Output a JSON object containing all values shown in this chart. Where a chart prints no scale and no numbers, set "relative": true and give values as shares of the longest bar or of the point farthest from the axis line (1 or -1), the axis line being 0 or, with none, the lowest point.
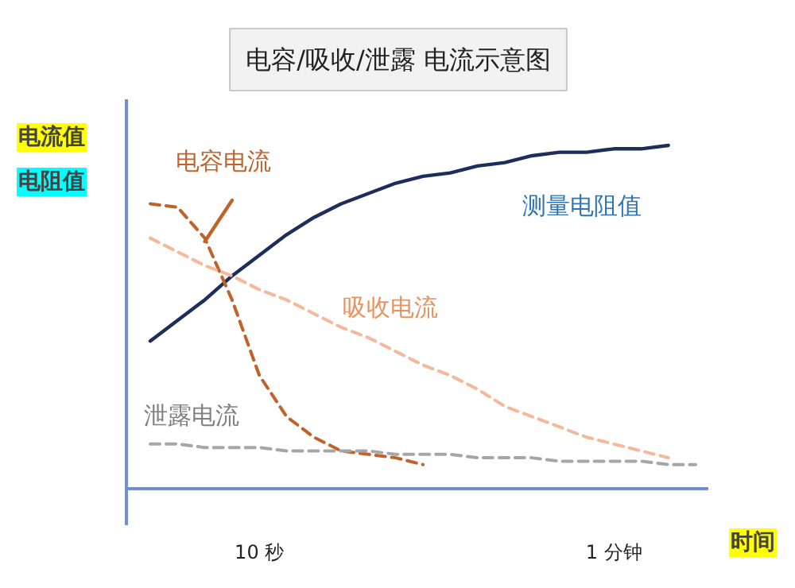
{
  "chart_data": {
    "type": "line",
    "title": "电容/吸收/泄露 电流示意图",
    "xlabel": "时间",
    "ylabel": "电流值",
    "y2label": "电阻值",
    "relative": true,
    "categories": [
      null,
      null,
      null,
      null,
      "10 秒",
      null,
      null,
      null,
      null,
      null,
      null,
      null,
      null,
      null,
      null,
      null,
      null,
      "1 分钟",
      null,
      null,
      null
    ],
    "series": [
      {
        "name": "测量电阻值",
        "color": "#1f2d5a",
        "line_style": "solid",
        "values": [
          0.43,
          0.49,
          0.55,
          0.62,
          0.68,
          0.74,
          0.79,
          0.83,
          0.86,
          0.89,
          0.91,
          0.92,
          0.94,
          0.95,
          0.97,
          0.98,
          0.98,
          0.99,
          0.99,
          1.0,
          null
        ]
      },
      {
        "name": "电容电流",
        "color": "#c0632a",
        "line_style": "dashed",
        "values": [
          0.83,
          0.82,
          0.73,
          0.55,
          0.33,
          0.21,
          0.15,
          0.11,
          0.1,
          0.09,
          0.07,
          null,
          null,
          null,
          null,
          null,
          null,
          null,
          null,
          null,
          null
        ]
      },
      {
        "color": "#c0632a",
        "line_style": "solid",
        "values": [
          null,
          null,
          0.72,
          0.84,
          null,
          null,
          null,
          null,
          null,
          null,
          null,
          null,
          null,
          null,
          null,
          null,
          null,
          null,
          null,
          null,
          null
        ]
      },
      {
        "name": "吸收电流",
        "color": "#f4b89a",
        "line_style": "dashed",
        "values": [
          0.73,
          0.69,
          0.65,
          0.62,
          0.58,
          0.55,
          0.51,
          0.47,
          0.44,
          0.4,
          0.36,
          0.33,
          0.29,
          0.24,
          0.21,
          0.18,
          0.15,
          0.13,
          0.11,
          0.09,
          null
        ]
      },
      {
        "name": "泄露电流",
        "color": "#a6a6a6",
        "line_style": "dashed",
        "values": [
          0.13,
          0.13,
          0.12,
          0.12,
          0.12,
          0.11,
          0.11,
          0.11,
          0.11,
          0.1,
          0.1,
          0.1,
          0.09,
          0.09,
          0.09,
          0.08,
          0.08,
          0.08,
          0.08,
          0.07,
          0.07
        ]
      }
    ]
  }
}
